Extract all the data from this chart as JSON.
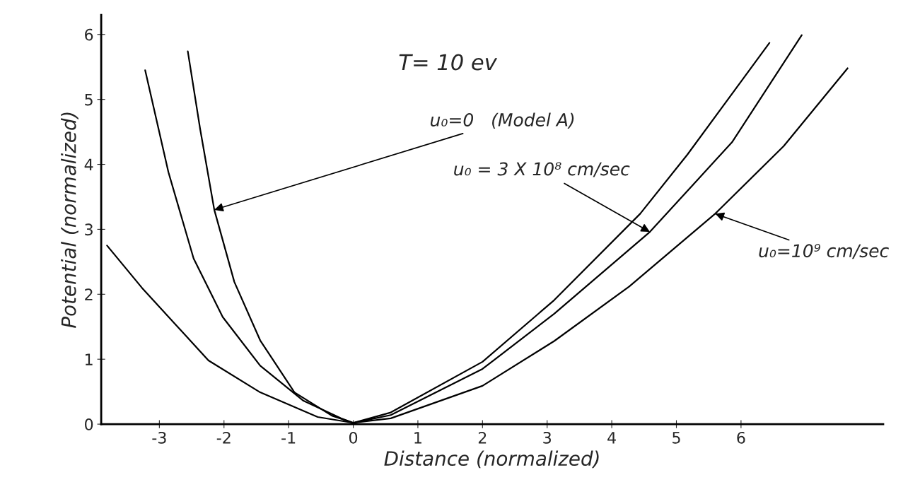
{
  "chart_data": {
    "type": "line",
    "xlabel": "Distance (normalized)",
    "ylabel": "Potential (normalized)",
    "series": [
      {
        "color": "#000000",
        "x": [
          -2.56,
          -2.37,
          -2.15,
          -1.84,
          -1.44,
          -0.91,
          -0.33,
          0,
          0.58,
          2.0,
          3.11,
          4.44,
          5.17,
          6.44
        ],
        "values": [
          5.74,
          4.55,
          3.3,
          2.19,
          1.29,
          0.49,
          0.13,
          0.02,
          0.18,
          0.96,
          1.91,
          3.24,
          4.15,
          5.87
        ]
      },
      {
        "color": "#000000",
        "x": [
          -3.22,
          -2.86,
          -2.47,
          -2.02,
          -1.44,
          -0.77,
          -0.19,
          0,
          0.58,
          2.0,
          3.11,
          4.59,
          5.86,
          6.94
        ],
        "values": [
          5.45,
          3.88,
          2.55,
          1.65,
          0.9,
          0.36,
          0.09,
          0.02,
          0.14,
          0.85,
          1.7,
          2.96,
          4.34,
          5.99
        ]
      },
      {
        "color": "#000000",
        "x": [
          -3.81,
          -3.27,
          -2.24,
          -1.44,
          -0.55,
          0,
          0.58,
          2.0,
          3.11,
          4.27,
          5.6,
          6.66,
          7.65
        ],
        "values": [
          2.75,
          2.1,
          0.98,
          0.49,
          0.11,
          0.02,
          0.09,
          0.59,
          1.28,
          2.12,
          3.24,
          4.28,
          5.48
        ]
      }
    ],
    "annotations": [
      "T= 10 ev",
      {
        "text": "u₀=0   (Model A)",
        "x": -2.15,
        "y": 3.3
      },
      {
        "text": "u₀ = 3 X 10⁸ cm/sec",
        "x": 4.59,
        "y": 2.96
      },
      {
        "text": "u₀=10⁹ cm/sec",
        "x": 5.6,
        "y": 3.24
      }
    ],
    "xlim": [
      -3.9,
      8.2
    ],
    "ylim": [
      0,
      6.3
    ],
    "xticks": [
      -3,
      -2,
      -1,
      0,
      1,
      2,
      3,
      4,
      5,
      6
    ],
    "yticks": [
      0,
      1,
      2,
      3,
      4,
      5,
      6
    ],
    "grid": false,
    "legend": false,
    "marker": "none",
    "line_style": "solid"
  }
}
